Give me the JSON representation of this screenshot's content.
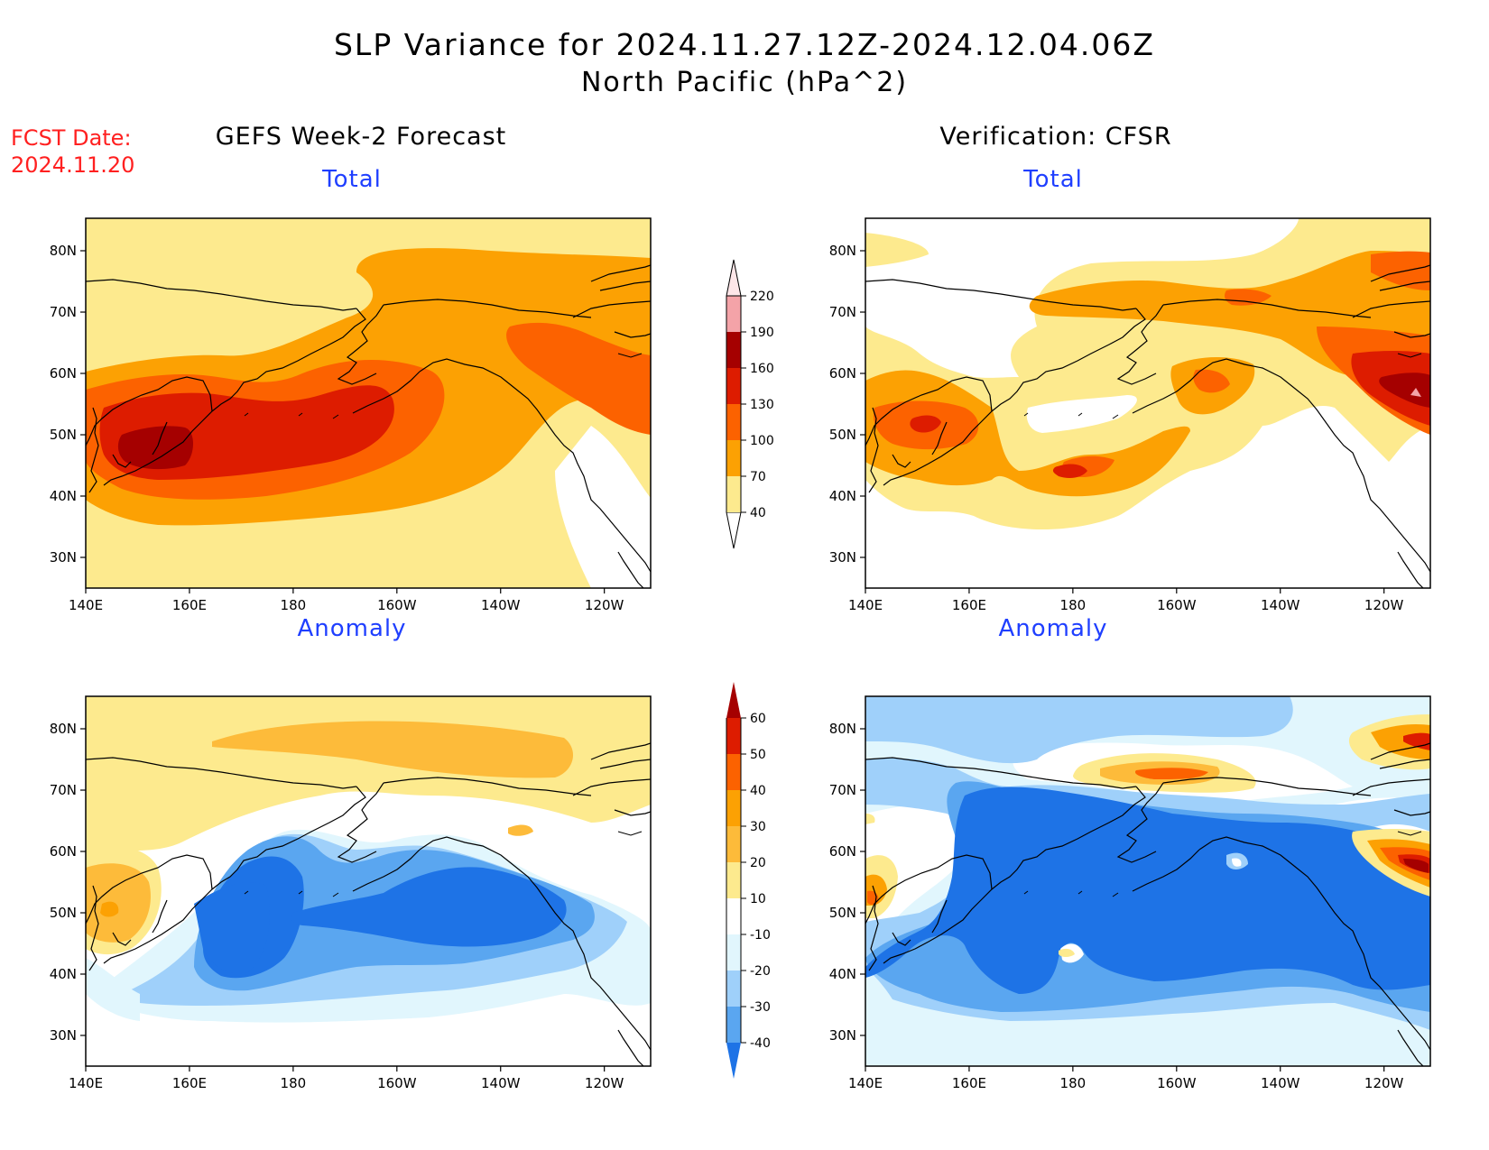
{
  "title": {
    "line1": "SLP Variance for 2024.11.27.12Z-2024.12.04.06Z",
    "line2": "North Pacific (hPa^2)"
  },
  "fcst_date": {
    "label": "FCST Date:",
    "value": "2024.11.20"
  },
  "columns": {
    "left": "GEFS Week-2 Forecast",
    "right": "Verification: CFSR"
  },
  "panels": {
    "forecast_total": "Total",
    "forecast_anomaly": "Anomaly",
    "verification_total": "Total",
    "verification_anomaly": "Anomaly"
  },
  "axes": {
    "lon_labels": [
      "140E",
      "160E",
      "180",
      "160W",
      "140W",
      "120W"
    ],
    "lat_labels": [
      "80N",
      "70N",
      "60N",
      "50N",
      "40N",
      "30N"
    ]
  },
  "colorbar_total": {
    "levels": [
      40,
      70,
      100,
      130,
      160,
      190,
      220
    ],
    "colors": [
      "#fdea8e",
      "#fca103",
      "#fc6200",
      "#dd1c00",
      "#a50000",
      "#f4a3a8",
      "#fde6e8"
    ]
  },
  "colorbar_anomaly": {
    "levels": [
      -40,
      -30,
      -20,
      -10,
      10,
      20,
      30,
      40,
      50,
      60
    ],
    "colors": [
      "#1e73e6",
      "#5aa6f0",
      "#9fd0fa",
      "#e1f6fd",
      "#ffffff",
      "#fdea8e",
      "#fdbb3a",
      "#fca103",
      "#fc6200",
      "#dd1c00",
      "#a50000"
    ]
  },
  "colors": {
    "title_text": "#000000",
    "fcst_text": "#ff2020",
    "panel_title": "#1f3fff"
  }
}
